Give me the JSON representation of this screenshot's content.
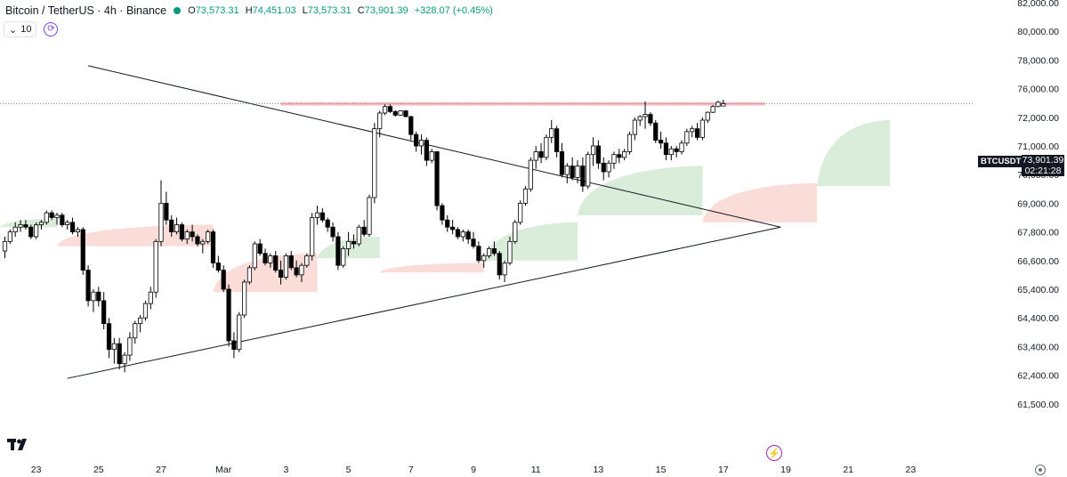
{
  "header": {
    "title": "Bitcoin / TetherUS · 4h · Binance",
    "status_color": "#089981",
    "ohlc": {
      "o_label": "O",
      "o_value": "73,573.31",
      "h_label": "H",
      "h_value": "74,451.03",
      "l_label": "L",
      "l_value": "73,573.31",
      "c_label": "C",
      "c_value": "73,901.39",
      "change": "+328.07 (+0.45%)"
    }
  },
  "indicator": {
    "collapse_icon": "chevron-down-icon",
    "value": "10",
    "refresh_icon": "refresh-icon"
  },
  "price_tag": {
    "symbol": "BTCUSDT",
    "price": "73,901.39",
    "countdown": "02:21:28"
  },
  "icons": {
    "logo": "tradingview-logo",
    "bolt": "lightning-icon",
    "settings": "settings-icon"
  },
  "colors": {
    "up": "#ffffff",
    "down": "#000000",
    "resistance": "#f5a3a8",
    "cloud_bull": "#cfe8d1",
    "cloud_bear": "#f9d3d0"
  },
  "chart_data": {
    "type": "candlestick",
    "title": "Bitcoin / TetherUS · 4h · Binance",
    "ylim": [
      61000,
      82500
    ],
    "y_ticks": [
      {
        "value": 82000,
        "label": "82,000.00"
      },
      {
        "value": 80000,
        "label": "80,000.00"
      },
      {
        "value": 78000,
        "label": "78,000.00"
      },
      {
        "value": 76000,
        "label": "76,000.00"
      },
      {
        "value": 72000,
        "label": "72,000.00"
      },
      {
        "value": 71000,
        "label": "71,000.00"
      },
      {
        "value": 70000,
        "label": "70,000.00"
      },
      {
        "value": 69000,
        "label": "69,000.00"
      },
      {
        "value": 67800,
        "label": "67,800.00"
      },
      {
        "value": 66600,
        "label": "66,600.00"
      },
      {
        "value": 65400,
        "label": "65,400.00"
      },
      {
        "value": 64400,
        "label": "64,400.00"
      },
      {
        "value": 63400,
        "label": "63,400.00"
      },
      {
        "value": 62400,
        "label": "62,400.00"
      },
      {
        "value": 61500,
        "label": "61,500.00"
      }
    ],
    "x_ticks": [
      {
        "bar": -6,
        "label": "21"
      },
      {
        "bar": 6,
        "label": "23"
      },
      {
        "bar": 18,
        "label": "25"
      },
      {
        "bar": 30,
        "label": "27"
      },
      {
        "bar": 42,
        "label": "Mar"
      },
      {
        "bar": 54,
        "label": "3"
      },
      {
        "bar": 66,
        "label": "5"
      },
      {
        "bar": 78,
        "label": "7"
      },
      {
        "bar": 90,
        "label": "9"
      },
      {
        "bar": 102,
        "label": "11"
      },
      {
        "bar": 114,
        "label": "13"
      },
      {
        "bar": 126,
        "label": "15"
      },
      {
        "bar": 138,
        "label": "17"
      },
      {
        "bar": 150,
        "label": "19"
      },
      {
        "bar": 162,
        "label": "21"
      },
      {
        "bar": 174,
        "label": "23"
      }
    ],
    "candles": [
      [
        67000,
        67600,
        66700,
        67400
      ],
      [
        67400,
        67900,
        67300,
        67800
      ],
      [
        67800,
        68200,
        67600,
        68000
      ],
      [
        68000,
        68300,
        67800,
        68100
      ],
      [
        68100,
        68300,
        67900,
        68000
      ],
      [
        68000,
        68100,
        67500,
        67600
      ],
      [
        67600,
        68200,
        67500,
        68100
      ],
      [
        68100,
        68300,
        67900,
        68200
      ],
      [
        68200,
        68700,
        68100,
        68600
      ],
      [
        68600,
        68700,
        68300,
        68400
      ],
      [
        68400,
        68600,
        68100,
        68500
      ],
      [
        68500,
        68600,
        68000,
        68100
      ],
      [
        68100,
        68300,
        67900,
        68200
      ],
      [
        68200,
        68400,
        67700,
        67800
      ],
      [
        67800,
        68000,
        67600,
        67900
      ],
      [
        67900,
        68000,
        66000,
        66200
      ],
      [
        66200,
        66400,
        64800,
        65000
      ],
      [
        65000,
        65400,
        64600,
        65300
      ],
      [
        65300,
        65500,
        64800,
        65000
      ],
      [
        65000,
        65300,
        64000,
        64200
      ],
      [
        64200,
        64400,
        63000,
        63300
      ],
      [
        63300,
        63700,
        62800,
        63500
      ],
      [
        63500,
        63700,
        62600,
        62800
      ],
      [
        62800,
        63200,
        62500,
        63100
      ],
      [
        63100,
        63900,
        62900,
        63700
      ],
      [
        63700,
        64300,
        63500,
        64200
      ],
      [
        64200,
        64500,
        63900,
        64400
      ],
      [
        64400,
        65000,
        64300,
        64900
      ],
      [
        64900,
        65500,
        64700,
        65300
      ],
      [
        65300,
        67500,
        65100,
        67400
      ],
      [
        67400,
        69800,
        67200,
        69000
      ],
      [
        69000,
        69400,
        68100,
        68300
      ],
      [
        68300,
        68500,
        67600,
        67800
      ],
      [
        67800,
        68400,
        67700,
        68100
      ],
      [
        68100,
        68200,
        67400,
        67500
      ],
      [
        67500,
        67900,
        67300,
        67800
      ],
      [
        67800,
        68100,
        67400,
        67600
      ],
      [
        67600,
        67700,
        67200,
        67300
      ],
      [
        67300,
        67500,
        66900,
        67400
      ],
      [
        67400,
        67900,
        67300,
        67800
      ],
      [
        67800,
        67900,
        66300,
        66500
      ],
      [
        66500,
        66800,
        66100,
        66200
      ],
      [
        66200,
        66400,
        65300,
        65400
      ],
      [
        65400,
        65600,
        63400,
        63600
      ],
      [
        63600,
        63900,
        63000,
        63300
      ],
      [
        63300,
        64600,
        63200,
        64500
      ],
      [
        64500,
        65800,
        64400,
        65700
      ],
      [
        65700,
        66400,
        65600,
        66300
      ],
      [
        66300,
        67400,
        66200,
        67300
      ],
      [
        67300,
        67500,
        66800,
        66900
      ],
      [
        66900,
        67100,
        66400,
        66500
      ],
      [
        66500,
        66900,
        66300,
        66800
      ],
      [
        66800,
        67000,
        66100,
        66200
      ],
      [
        66200,
        66600,
        65600,
        65900
      ],
      [
        65900,
        66900,
        65800,
        66800
      ],
      [
        66800,
        67000,
        66200,
        66300
      ],
      [
        66300,
        66600,
        65900,
        66000
      ],
      [
        66000,
        66500,
        65700,
        66400
      ],
      [
        66400,
        66900,
        66300,
        66800
      ],
      [
        66800,
        68600,
        66600,
        68400
      ],
      [
        68400,
        68900,
        68100,
        68600
      ],
      [
        68600,
        68800,
        68200,
        68300
      ],
      [
        68300,
        68400,
        67800,
        68000
      ],
      [
        68000,
        68200,
        67400,
        67600
      ],
      [
        67600,
        67800,
        66200,
        66400
      ],
      [
        66400,
        67200,
        66300,
        67100
      ],
      [
        67100,
        67800,
        66800,
        67400
      ],
      [
        67400,
        67700,
        67100,
        67300
      ],
      [
        67300,
        68100,
        67200,
        68000
      ],
      [
        68000,
        68300,
        67600,
        67700
      ],
      [
        67700,
        69300,
        67600,
        69200
      ],
      [
        69200,
        71800,
        69000,
        71600
      ],
      [
        71600,
        72900,
        71300,
        72600
      ],
      [
        72600,
        73800,
        72300,
        73500
      ],
      [
        73500,
        73800,
        72600,
        72800
      ],
      [
        72800,
        73000,
        72100,
        72300
      ],
      [
        72300,
        73000,
        72200,
        72900
      ],
      [
        72900,
        73000,
        72000,
        72100
      ],
      [
        72100,
        72200,
        71200,
        71400
      ],
      [
        71400,
        71500,
        70800,
        71000
      ],
      [
        71000,
        71400,
        70700,
        71200
      ],
      [
        71200,
        71300,
        70300,
        70500
      ],
      [
        70500,
        70900,
        70400,
        70800
      ],
      [
        70800,
        70800,
        68700,
        68900
      ],
      [
        68900,
        69000,
        68100,
        68300
      ],
      [
        68300,
        68500,
        67800,
        68000
      ],
      [
        68000,
        68300,
        67700,
        67900
      ],
      [
        67900,
        68000,
        67500,
        67600
      ],
      [
        67600,
        67900,
        67400,
        67800
      ],
      [
        67800,
        67900,
        67300,
        67500
      ],
      [
        67500,
        67800,
        67100,
        67200
      ],
      [
        67200,
        67400,
        66500,
        66600
      ],
      [
        66600,
        66900,
        66300,
        66800
      ],
      [
        66800,
        67200,
        66700,
        67100
      ],
      [
        67100,
        67400,
        66800,
        66900
      ],
      [
        66900,
        67000,
        65800,
        66000
      ],
      [
        66000,
        66600,
        65700,
        66500
      ],
      [
        66500,
        67600,
        66400,
        67400
      ],
      [
        67400,
        68300,
        67300,
        68200
      ],
      [
        68200,
        69100,
        68100,
        69000
      ],
      [
        69000,
        69600,
        68900,
        69500
      ],
      [
        69500,
        70600,
        69400,
        70500
      ],
      [
        70500,
        71000,
        70200,
        70800
      ],
      [
        70800,
        71100,
        70400,
        70600
      ],
      [
        70600,
        71400,
        70500,
        71300
      ],
      [
        71300,
        71900,
        71100,
        71600
      ],
      [
        71600,
        71700,
        70600,
        70800
      ],
      [
        70800,
        71100,
        69900,
        70000
      ],
      [
        70000,
        70400,
        69700,
        70300
      ],
      [
        70300,
        70600,
        69800,
        69900
      ],
      [
        69900,
        70500,
        69700,
        70300
      ],
      [
        70300,
        70600,
        69400,
        69600
      ],
      [
        69600,
        70800,
        69500,
        70700
      ],
      [
        70700,
        71300,
        70300,
        71000
      ],
      [
        71000,
        71200,
        70200,
        70400
      ],
      [
        70400,
        70600,
        69800,
        70100
      ],
      [
        70100,
        70500,
        69900,
        70400
      ],
      [
        70400,
        70800,
        70200,
        70700
      ],
      [
        70700,
        70900,
        70400,
        70600
      ],
      [
        70600,
        70900,
        70500,
        70800
      ],
      [
        70800,
        71500,
        70700,
        71400
      ],
      [
        71400,
        72000,
        71200,
        71900
      ],
      [
        71900,
        72300,
        71700,
        72100
      ],
      [
        72100,
        74200,
        71600,
        72400
      ],
      [
        72400,
        72700,
        71700,
        71800
      ],
      [
        71800,
        71900,
        71100,
        71200
      ],
      [
        71200,
        71500,
        70900,
        71100
      ],
      [
        71100,
        71300,
        70500,
        70700
      ],
      [
        70700,
        71000,
        70500,
        70900
      ],
      [
        70900,
        71000,
        70600,
        70800
      ],
      [
        70800,
        71200,
        70700,
        71100
      ],
      [
        71100,
        71600,
        71000,
        71500
      ],
      [
        71500,
        71700,
        71300,
        71600
      ],
      [
        71600,
        71800,
        71200,
        71300
      ],
      [
        71300,
        72000,
        71200,
        71900
      ],
      [
        71900,
        72800,
        71800,
        72700
      ],
      [
        72700,
        73700,
        72600,
        73500
      ],
      [
        73500,
        74300,
        73400,
        74100
      ],
      [
        73573,
        74451,
        73573,
        73901
      ]
    ],
    "ichimoku_cloud": [
      {
        "from_bar": -15,
        "to_bar": 10,
        "top": 68350,
        "bottom": 68000,
        "sentiment": "bull"
      },
      {
        "from_bar": 10,
        "to_bar": 40,
        "top": 68100,
        "bottom": 67200,
        "sentiment": "bear"
      },
      {
        "from_bar": 40,
        "to_bar": 60,
        "top": 66900,
        "bottom": 65300,
        "sentiment": "bear"
      },
      {
        "from_bar": 60,
        "to_bar": 72,
        "top": 67600,
        "bottom": 66700,
        "sentiment": "bull"
      },
      {
        "from_bar": 72,
        "to_bar": 92,
        "top": 66500,
        "bottom": 66100,
        "sentiment": "bear"
      },
      {
        "from_bar": 92,
        "to_bar": 110,
        "top": 68200,
        "bottom": 66600,
        "sentiment": "bull"
      },
      {
        "from_bar": 110,
        "to_bar": 134,
        "top": 70300,
        "bottom": 68500,
        "sentiment": "bull"
      },
      {
        "from_bar": 134,
        "to_bar": 156,
        "top": 69700,
        "bottom": 68200,
        "sentiment": "bear"
      },
      {
        "from_bar": 156,
        "to_bar": 170,
        "top": 71900,
        "bottom": 69600,
        "sentiment": "bull"
      }
    ],
    "annotations": {
      "resistance_zone": {
        "from_bar": 53,
        "to_bar": 146,
        "top": 74100,
        "bottom": 73650
      },
      "upper_trendline": [
        {
          "bar": 16,
          "price": 77600
        },
        {
          "bar": 149,
          "price": 68000
        }
      ],
      "lower_trendline": [
        {
          "bar": 12,
          "price": 62300
        },
        {
          "bar": 149,
          "price": 68000
        }
      ],
      "last_price": 73901.39
    }
  }
}
